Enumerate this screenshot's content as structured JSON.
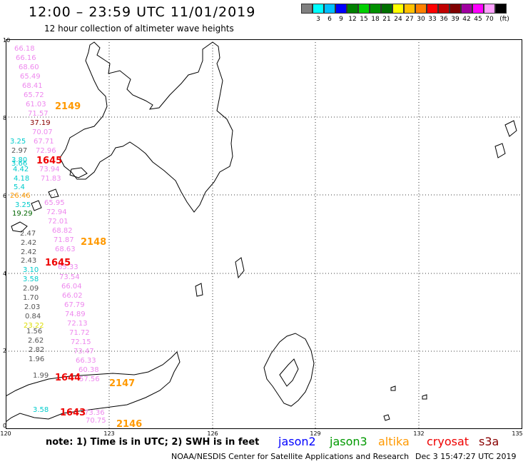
{
  "header": {
    "title": "12:00 – 23:59 UTC 11/01/2019",
    "subtitle": "12 hour collection of altimeter wave heights"
  },
  "legend": {
    "unit": "(ft)",
    "cells": [
      {
        "color": "#808080",
        "label": ""
      },
      {
        "color": "#00ffff",
        "label": "3"
      },
      {
        "color": "#00bfff",
        "label": "6"
      },
      {
        "color": "#0000ff",
        "label": "9"
      },
      {
        "color": "#008000",
        "label": "12"
      },
      {
        "color": "#00d000",
        "label": "15"
      },
      {
        "color": "#009000",
        "label": "18"
      },
      {
        "color": "#007000",
        "label": "21"
      },
      {
        "color": "#ffff00",
        "label": "24"
      },
      {
        "color": "#ffc000",
        "label": "27"
      },
      {
        "color": "#ff8000",
        "label": "30"
      },
      {
        "color": "#ff0000",
        "label": "33"
      },
      {
        "color": "#c00000",
        "label": "36"
      },
      {
        "color": "#800000",
        "label": "39"
      },
      {
        "color": "#a000a0",
        "label": "42"
      },
      {
        "color": "#ff00ff",
        "label": "45"
      },
      {
        "color": "#ffa0ff",
        "label": "70"
      },
      {
        "color": "#000000",
        "label": ""
      }
    ]
  },
  "map": {
    "lat_ticks": [
      "10",
      "8",
      "6",
      "4",
      "2",
      "0"
    ],
    "lon_ticks": [
      "120",
      "123",
      "126",
      "129",
      "132",
      "135"
    ],
    "lon_range": [
      120,
      135
    ],
    "lat_range": [
      0,
      10
    ]
  },
  "observations": [
    {
      "v": "66.18",
      "c": "#ee88ee"
    },
    {
      "v": "66.16",
      "c": "#ee88ee"
    },
    {
      "v": "68.60",
      "c": "#ee88ee"
    },
    {
      "v": "65.49",
      "c": "#ee88ee"
    },
    {
      "v": "68.41",
      "c": "#ee88ee"
    },
    {
      "v": "65.72",
      "c": "#ee88ee"
    },
    {
      "v": "61.03",
      "c": "#ee88ee"
    },
    {
      "v": "71.57",
      "c": "#ee88ee"
    },
    {
      "v": "37.19",
      "c": "#880000"
    },
    {
      "v": "70.07",
      "c": "#ee88ee"
    },
    {
      "v": "3.25",
      "c": "#00cccc"
    },
    {
      "v": "67.71",
      "c": "#ee88ee"
    },
    {
      "v": "2.97",
      "c": "#555555"
    },
    {
      "v": "72.96",
      "c": "#ee88ee"
    },
    {
      "v": "3.80",
      "c": "#00cccc"
    },
    {
      "v": "3.66",
      "c": "#00cccc"
    },
    {
      "v": "4.42",
      "c": "#00cccc"
    },
    {
      "v": "73.94",
      "c": "#ee88ee"
    },
    {
      "v": "4.18",
      "c": "#00cccc"
    },
    {
      "v": "71.83",
      "c": "#ee88ee"
    },
    {
      "v": "5.4",
      "c": "#00cccc"
    },
    {
      "v": "26.46",
      "c": "#ff9900"
    },
    {
      "v": "65.95",
      "c": "#ee88ee"
    },
    {
      "v": "3.25",
      "c": "#00cccc"
    },
    {
      "v": "72.94",
      "c": "#ee88ee"
    },
    {
      "v": "19.29",
      "c": "#006600"
    },
    {
      "v": "72.01",
      "c": "#ee88ee"
    },
    {
      "v": "68.82",
      "c": "#ee88ee"
    },
    {
      "v": "2.47",
      "c": "#555555"
    },
    {
      "v": "71.87",
      "c": "#ee88ee"
    },
    {
      "v": "2.42",
      "c": "#555555"
    },
    {
      "v": "68.63",
      "c": "#ee88ee"
    },
    {
      "v": "2.42",
      "c": "#555555"
    },
    {
      "v": "2.43",
      "c": "#555555"
    },
    {
      "v": "3.10",
      "c": "#00cccc"
    },
    {
      "v": "65.33",
      "c": "#ee88ee"
    },
    {
      "v": "3.58",
      "c": "#00cccc"
    },
    {
      "v": "73.54",
      "c": "#ee88ee"
    },
    {
      "v": "2.09",
      "c": "#555555"
    },
    {
      "v": "66.04",
      "c": "#ee88ee"
    },
    {
      "v": "1.70",
      "c": "#555555"
    },
    {
      "v": "66.02",
      "c": "#ee88ee"
    },
    {
      "v": "2.03",
      "c": "#555555"
    },
    {
      "v": "67.79",
      "c": "#ee88ee"
    },
    {
      "v": "0.84",
      "c": "#555555"
    },
    {
      "v": "74.89",
      "c": "#ee88ee"
    },
    {
      "v": "23.22",
      "c": "#dddd00"
    },
    {
      "v": "72.13",
      "c": "#ee88ee"
    },
    {
      "v": "1.56",
      "c": "#555555"
    },
    {
      "v": "71.72",
      "c": "#ee88ee"
    },
    {
      "v": "2.62",
      "c": "#555555"
    },
    {
      "v": "72.15",
      "c": "#ee88ee"
    },
    {
      "v": "2.82",
      "c": "#555555"
    },
    {
      "v": "73.47",
      "c": "#ee88ee"
    },
    {
      "v": "1.96",
      "c": "#555555"
    },
    {
      "v": "66.33",
      "c": "#ee88ee"
    },
    {
      "v": "1.99",
      "c": "#555555"
    },
    {
      "v": "60.38",
      "c": "#ee88ee"
    },
    {
      "v": "57.56",
      "c": "#ee88ee"
    },
    {
      "v": "3.58",
      "c": "#00cccc"
    },
    {
      "v": "73.36",
      "c": "#ee88ee"
    },
    {
      "v": "70.75",
      "c": "#ee88ee"
    }
  ],
  "revolutions": [
    {
      "v": "2149",
      "c": "#ff9900"
    },
    {
      "v": "1645",
      "c": "#ee0000"
    },
    {
      "v": "2148",
      "c": "#ff9900"
    },
    {
      "v": "1645",
      "c": "#ee0000"
    },
    {
      "v": "1644",
      "c": "#ee0000"
    },
    {
      "v": "2147",
      "c": "#ff9900"
    },
    {
      "v": "1643",
      "c": "#ee0000"
    },
    {
      "v": "2146",
      "c": "#ff9900"
    }
  ],
  "note": "note: 1) Time is in UTC; 2) SWH is in feet",
  "satellites": [
    {
      "name": "jason2",
      "color": "#0000ff"
    },
    {
      "name": "jason3",
      "color": "#009900"
    },
    {
      "name": "altika",
      "color": "#ff9900"
    },
    {
      "name": "cryosat",
      "color": "#ee0000"
    },
    {
      "name": "s3a",
      "color": "#880000"
    }
  ],
  "footer": {
    "agency": "NOAA/NESDIS Center for Satellite Applications and Research",
    "timestamp": "Dec  3 15:47:27 UTC 2019"
  }
}
